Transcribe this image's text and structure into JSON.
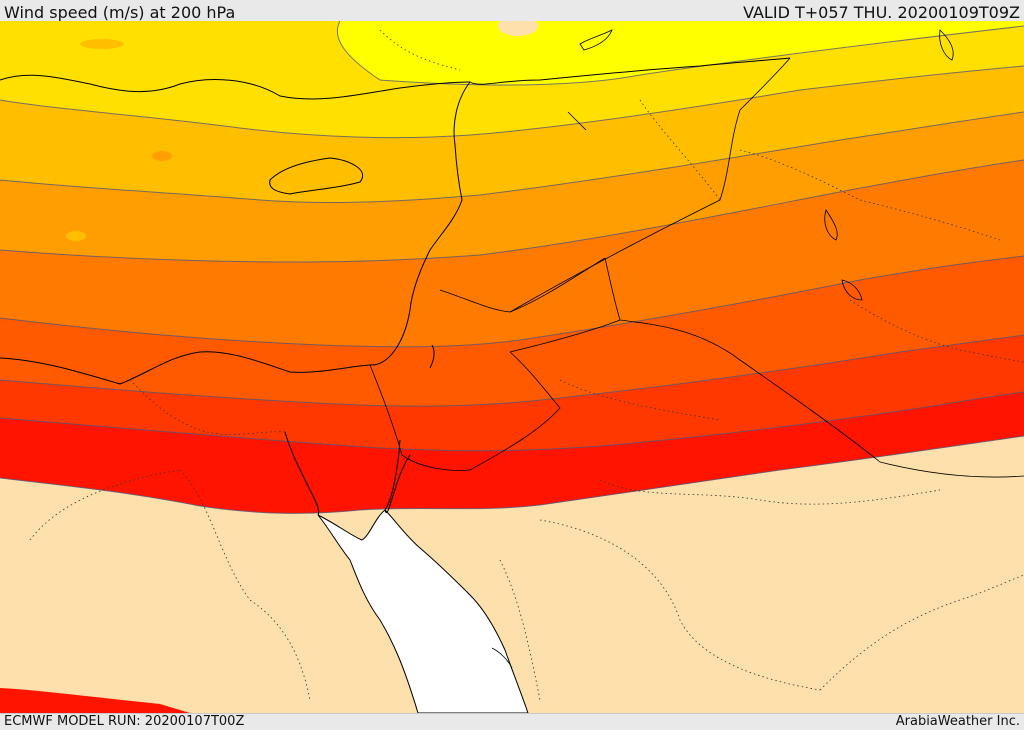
{
  "header": {
    "title": "Wind speed (m/s) at 200 hPa",
    "valid": "VALID T+057 THU. 20200109T09Z"
  },
  "footer": {
    "model_run": "ECMWF MODEL RUN: 20200107T00Z",
    "credit": "ArabiaWeather Inc."
  },
  "colors": {
    "land_background": "#fde0ab",
    "sea": "#ffffff",
    "band_1": "#ffff00",
    "band_2": "#ffe000",
    "band_3": "#ffbe00",
    "band_4": "#ff9e00",
    "band_5": "#ff7a00",
    "band_6": "#ff5a00",
    "band_7": "#ff3800",
    "band_8": "#ff1400",
    "contour": "#555577",
    "coastline": "#000000",
    "border": "#000000"
  }
}
